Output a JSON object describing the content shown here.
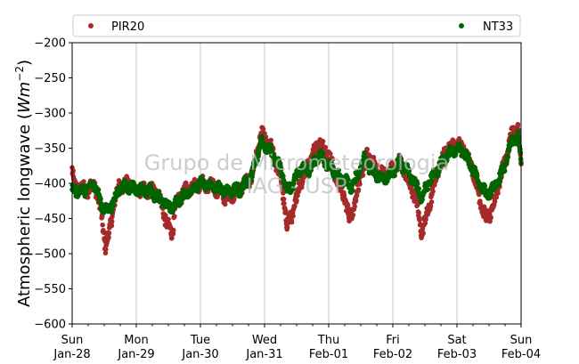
{
  "chart_data": {
    "type": "scatter",
    "title": "",
    "ylabel_main": "Atmospheric longwave (",
    "ylabel_unit": "Wm",
    "ylabel_exp": "−2",
    "ylabel_close": ")",
    "ylim": [
      -600,
      -200
    ],
    "yticks": [
      -200,
      -250,
      -300,
      -350,
      -400,
      -450,
      -500,
      -550,
      -600
    ],
    "ytick_labels": [
      "−200",
      "−250",
      "−300",
      "−350",
      "−400",
      "−450",
      "−500",
      "−550",
      "−600"
    ],
    "xlim_days": [
      0,
      7
    ],
    "xticks": [
      {
        "day": "Sun",
        "date": "Jan-28"
      },
      {
        "day": "Mon",
        "date": "Jan-29"
      },
      {
        "day": "Tue",
        "date": "Jan-30"
      },
      {
        "day": "Wed",
        "date": "Jan-31"
      },
      {
        "day": "Thu",
        "date": "Feb-01"
      },
      {
        "day": "Fri",
        "date": "Feb-02"
      },
      {
        "day": "Sat",
        "date": "Feb-03"
      },
      {
        "day": "Sun",
        "date": "Feb-04"
      }
    ],
    "grid": "vertical",
    "legend_position": "top",
    "watermark": [
      "Grupo de Micrometeorologia",
      "IAG - USP"
    ],
    "series": [
      {
        "name": "PIR20",
        "color": "#a52a2a",
        "keypoints": [
          [
            0.0,
            -380
          ],
          [
            0.03,
            -405
          ],
          [
            0.25,
            -410
          ],
          [
            0.35,
            -400
          ],
          [
            0.45,
            -440
          ],
          [
            0.52,
            -490
          ],
          [
            0.58,
            -470
          ],
          [
            0.65,
            -430
          ],
          [
            0.72,
            -405
          ],
          [
            0.85,
            -400
          ],
          [
            1.0,
            -410
          ],
          [
            1.3,
            -410
          ],
          [
            1.4,
            -430
          ],
          [
            1.48,
            -460
          ],
          [
            1.56,
            -470
          ],
          [
            1.62,
            -430
          ],
          [
            1.75,
            -410
          ],
          [
            2.0,
            -400
          ],
          [
            2.2,
            -405
          ],
          [
            2.4,
            -420
          ],
          [
            2.6,
            -410
          ],
          [
            2.8,
            -390
          ],
          [
            2.95,
            -330
          ],
          [
            3.1,
            -350
          ],
          [
            3.25,
            -390
          ],
          [
            3.35,
            -460
          ],
          [
            3.45,
            -440
          ],
          [
            3.55,
            -400
          ],
          [
            3.7,
            -370
          ],
          [
            3.85,
            -340
          ],
          [
            4.0,
            -360
          ],
          [
            4.15,
            -400
          ],
          [
            4.25,
            -420
          ],
          [
            4.32,
            -450
          ],
          [
            4.4,
            -430
          ],
          [
            4.5,
            -390
          ],
          [
            4.6,
            -360
          ],
          [
            4.75,
            -380
          ],
          [
            4.9,
            -390
          ],
          [
            5.0,
            -380
          ],
          [
            5.1,
            -370
          ],
          [
            5.2,
            -385
          ],
          [
            5.35,
            -420
          ],
          [
            5.45,
            -470
          ],
          [
            5.55,
            -440
          ],
          [
            5.7,
            -380
          ],
          [
            5.85,
            -350
          ],
          [
            6.0,
            -345
          ],
          [
            6.1,
            -350
          ],
          [
            6.25,
            -380
          ],
          [
            6.35,
            -420
          ],
          [
            6.45,
            -450
          ],
          [
            6.55,
            -440
          ],
          [
            6.65,
            -400
          ],
          [
            6.75,
            -370
          ],
          [
            6.85,
            -330
          ],
          [
            6.95,
            -320
          ],
          [
            7.0,
            -380
          ]
        ]
      },
      {
        "name": "NT33",
        "color": "#006400",
        "keypoints": [
          [
            0.0,
            -410
          ],
          [
            0.05,
            -410
          ],
          [
            0.2,
            -410
          ],
          [
            0.35,
            -400
          ],
          [
            0.45,
            -430
          ],
          [
            0.55,
            -440
          ],
          [
            0.65,
            -425
          ],
          [
            0.75,
            -405
          ],
          [
            0.9,
            -405
          ],
          [
            1.0,
            -410
          ],
          [
            1.2,
            -410
          ],
          [
            1.35,
            -420
          ],
          [
            1.45,
            -430
          ],
          [
            1.55,
            -435
          ],
          [
            1.7,
            -420
          ],
          [
            1.85,
            -410
          ],
          [
            2.0,
            -400
          ],
          [
            2.2,
            -405
          ],
          [
            2.4,
            -410
          ],
          [
            2.6,
            -410
          ],
          [
            2.8,
            -390
          ],
          [
            2.95,
            -340
          ],
          [
            3.1,
            -355
          ],
          [
            3.25,
            -380
          ],
          [
            3.35,
            -410
          ],
          [
            3.45,
            -400
          ],
          [
            3.55,
            -380
          ],
          [
            3.7,
            -380
          ],
          [
            3.85,
            -360
          ],
          [
            4.0,
            -375
          ],
          [
            4.15,
            -390
          ],
          [
            4.25,
            -395
          ],
          [
            4.35,
            -405
          ],
          [
            4.45,
            -390
          ],
          [
            4.55,
            -365
          ],
          [
            4.7,
            -385
          ],
          [
            4.85,
            -395
          ],
          [
            5.0,
            -385
          ],
          [
            5.1,
            -370
          ],
          [
            5.2,
            -380
          ],
          [
            5.35,
            -400
          ],
          [
            5.45,
            -420
          ],
          [
            5.55,
            -400
          ],
          [
            5.7,
            -380
          ],
          [
            5.85,
            -360
          ],
          [
            6.0,
            -350
          ],
          [
            6.1,
            -355
          ],
          [
            6.25,
            -380
          ],
          [
            6.35,
            -400
          ],
          [
            6.45,
            -415
          ],
          [
            6.55,
            -410
          ],
          [
            6.65,
            -395
          ],
          [
            6.75,
            -375
          ],
          [
            6.85,
            -340
          ],
          [
            6.95,
            -335
          ],
          [
            7.0,
            -370
          ]
        ]
      }
    ]
  }
}
